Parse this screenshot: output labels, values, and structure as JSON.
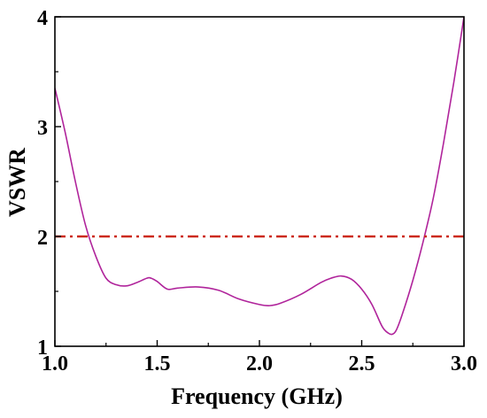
{
  "chart_data": {
    "type": "line",
    "title": "",
    "xlabel": "Frequency (GHz)",
    "ylabel": "VSWR",
    "xlim": [
      1.0,
      3.0
    ],
    "ylim": [
      1,
      4
    ],
    "xticks": [
      "1.0",
      "1.5",
      "2.0",
      "2.5",
      "3.0"
    ],
    "yticks": [
      "1",
      "2",
      "3",
      "4"
    ],
    "grid": false,
    "series": [
      {
        "style": "solid",
        "color": "#b0249b",
        "x": [
          1.0,
          1.05,
          1.1,
          1.15,
          1.2,
          1.25,
          1.3,
          1.35,
          1.4,
          1.45,
          1.47,
          1.5,
          1.55,
          1.6,
          1.7,
          1.8,
          1.9,
          2.0,
          2.05,
          2.1,
          2.2,
          2.3,
          2.35,
          2.4,
          2.45,
          2.5,
          2.55,
          2.6,
          2.63,
          2.65,
          2.67,
          2.7,
          2.75,
          2.8,
          2.85,
          2.9,
          2.95,
          3.0
        ],
        "y": [
          3.35,
          2.95,
          2.5,
          2.1,
          1.82,
          1.62,
          1.56,
          1.55,
          1.58,
          1.62,
          1.62,
          1.59,
          1.52,
          1.53,
          1.54,
          1.51,
          1.43,
          1.38,
          1.37,
          1.39,
          1.47,
          1.58,
          1.62,
          1.64,
          1.61,
          1.52,
          1.38,
          1.18,
          1.12,
          1.11,
          1.15,
          1.3,
          1.6,
          1.95,
          2.35,
          2.85,
          3.4,
          4.0
        ]
      },
      {
        "style": "dash-dot",
        "color": "#cc2a1a",
        "x": [
          1.0,
          3.0
        ],
        "y": [
          2,
          2
        ]
      }
    ]
  }
}
